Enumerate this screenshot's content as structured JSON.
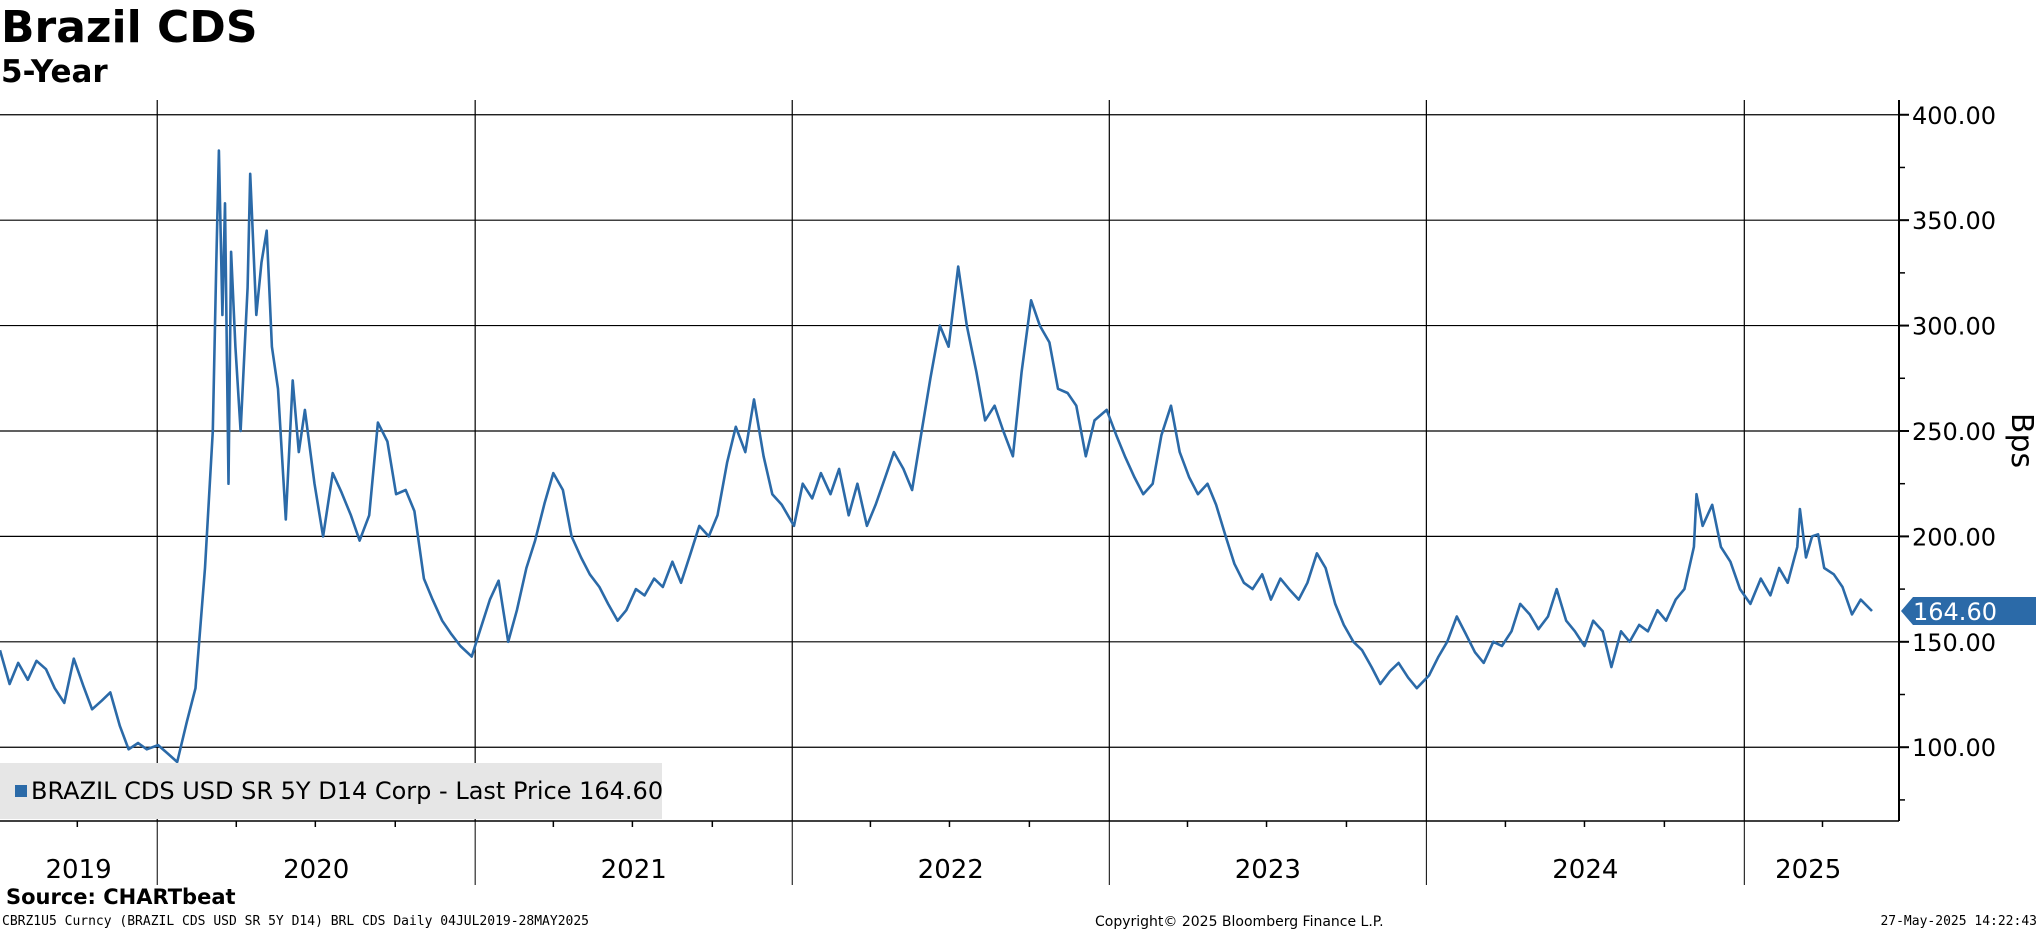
{
  "header": {
    "title": "Brazil CDS",
    "subtitle": "5-Year"
  },
  "footer": {
    "source": "Source: CHARTbeat",
    "ticker_line": "CBRZ1U5 Curncy (BRAZIL CDS USD SR 5Y D14) BRL CDS  Daily 04JUL2019-28MAY2025",
    "copyright": "Copyright© 2025 Bloomberg Finance L.P.",
    "timestamp": "27-May-2025 14:22:43"
  },
  "legend": {
    "label": "BRAZIL CDS USD SR 5Y D14 Corp - Last Price 164.60"
  },
  "colors": {
    "line": "#2b6aa8",
    "grid": "#000000",
    "last_price_tag": "#2b6aa8",
    "legend_background": "#e6e6e6"
  },
  "chart_data": {
    "type": "line",
    "title": "Brazil CDS",
    "subtitle": "5-Year",
    "ylabel": "Bps",
    "xlabel": "",
    "ylim": [
      65,
      407
    ],
    "xlim": [
      "2019-07-04",
      "2025-05-28"
    ],
    "y_ticks": [
      100,
      150,
      200,
      250,
      300,
      350,
      400
    ],
    "y_tick_labels": [
      "100.00",
      "150.00",
      "200.00",
      "250.00",
      "300.00",
      "350.00",
      "400.00"
    ],
    "x_year_labels": [
      "2019",
      "2020",
      "2021",
      "2022",
      "2023",
      "2024",
      "2025"
    ],
    "last_price": 164.6,
    "last_price_label": "164.60",
    "grid": true,
    "legend_position": "bottom-left",
    "series": [
      {
        "name": "BRAZIL CDS USD SR 5Y D14 Corp - Last Price",
        "points": [
          [
            "2019-07-04",
            146
          ],
          [
            "2019-07-15",
            130
          ],
          [
            "2019-07-25",
            140
          ],
          [
            "2019-08-05",
            132
          ],
          [
            "2019-08-15",
            141
          ],
          [
            "2019-08-26",
            137
          ],
          [
            "2019-09-05",
            128
          ],
          [
            "2019-09-16",
            121
          ],
          [
            "2019-09-27",
            142
          ],
          [
            "2019-10-08",
            129
          ],
          [
            "2019-10-18",
            118
          ],
          [
            "2019-10-29",
            122
          ],
          [
            "2019-11-08",
            126
          ],
          [
            "2019-11-19",
            110
          ],
          [
            "2019-11-29",
            99
          ],
          [
            "2019-12-10",
            102
          ],
          [
            "2019-12-20",
            99
          ],
          [
            "2020-01-02",
            101
          ],
          [
            "2020-01-13",
            97
          ],
          [
            "2020-01-24",
            93
          ],
          [
            "2020-02-04",
            112
          ],
          [
            "2020-02-14",
            128
          ],
          [
            "2020-02-25",
            185
          ],
          [
            "2020-03-05",
            250
          ],
          [
            "2020-03-09",
            330
          ],
          [
            "2020-03-12",
            383
          ],
          [
            "2020-03-16",
            305
          ],
          [
            "2020-03-19",
            358
          ],
          [
            "2020-03-23",
            225
          ],
          [
            "2020-03-26",
            335
          ],
          [
            "2020-03-31",
            290
          ],
          [
            "2020-04-06",
            250
          ],
          [
            "2020-04-14",
            318
          ],
          [
            "2020-04-17",
            372
          ],
          [
            "2020-04-24",
            305
          ],
          [
            "2020-04-30",
            330
          ],
          [
            "2020-05-06",
            345
          ],
          [
            "2020-05-12",
            290
          ],
          [
            "2020-05-19",
            270
          ],
          [
            "2020-05-28",
            208
          ],
          [
            "2020-06-05",
            274
          ],
          [
            "2020-06-12",
            240
          ],
          [
            "2020-06-19",
            260
          ],
          [
            "2020-06-30",
            225
          ],
          [
            "2020-07-10",
            200
          ],
          [
            "2020-07-21",
            230
          ],
          [
            "2020-07-31",
            221
          ],
          [
            "2020-08-11",
            210
          ],
          [
            "2020-08-21",
            198
          ],
          [
            "2020-09-01",
            210
          ],
          [
            "2020-09-11",
            254
          ],
          [
            "2020-09-22",
            245
          ],
          [
            "2020-10-02",
            220
          ],
          [
            "2020-10-13",
            222
          ],
          [
            "2020-10-23",
            212
          ],
          [
            "2020-11-03",
            180
          ],
          [
            "2020-11-13",
            170
          ],
          [
            "2020-11-24",
            160
          ],
          [
            "2020-12-04",
            154
          ],
          [
            "2020-12-15",
            148
          ],
          [
            "2020-12-28",
            143
          ],
          [
            "2021-01-07",
            156
          ],
          [
            "2021-01-18",
            170
          ],
          [
            "2021-01-28",
            179
          ],
          [
            "2021-02-08",
            150
          ],
          [
            "2021-02-18",
            165
          ],
          [
            "2021-03-01",
            185
          ],
          [
            "2021-03-11",
            198
          ],
          [
            "2021-03-22",
            216
          ],
          [
            "2021-04-01",
            230
          ],
          [
            "2021-04-12",
            222
          ],
          [
            "2021-04-22",
            200
          ],
          [
            "2021-05-03",
            190
          ],
          [
            "2021-05-13",
            182
          ],
          [
            "2021-05-24",
            176
          ],
          [
            "2021-06-03",
            168
          ],
          [
            "2021-06-14",
            160
          ],
          [
            "2021-06-24",
            165
          ],
          [
            "2021-07-05",
            175
          ],
          [
            "2021-07-15",
            172
          ],
          [
            "2021-07-26",
            180
          ],
          [
            "2021-08-05",
            176
          ],
          [
            "2021-08-16",
            188
          ],
          [
            "2021-08-26",
            178
          ],
          [
            "2021-09-06",
            192
          ],
          [
            "2021-09-16",
            205
          ],
          [
            "2021-09-27",
            200
          ],
          [
            "2021-10-07",
            210
          ],
          [
            "2021-10-18",
            235
          ],
          [
            "2021-10-28",
            252
          ],
          [
            "2021-11-08",
            240
          ],
          [
            "2021-11-18",
            265
          ],
          [
            "2021-11-29",
            238
          ],
          [
            "2021-12-09",
            220
          ],
          [
            "2021-12-20",
            215
          ],
          [
            "2022-01-03",
            205
          ],
          [
            "2022-01-13",
            225
          ],
          [
            "2022-01-24",
            218
          ],
          [
            "2022-02-03",
            230
          ],
          [
            "2022-02-14",
            220
          ],
          [
            "2022-02-24",
            232
          ],
          [
            "2022-03-07",
            210
          ],
          [
            "2022-03-17",
            225
          ],
          [
            "2022-03-28",
            205
          ],
          [
            "2022-04-07",
            215
          ],
          [
            "2022-04-18",
            228
          ],
          [
            "2022-04-28",
            240
          ],
          [
            "2022-05-09",
            232
          ],
          [
            "2022-05-19",
            222
          ],
          [
            "2022-05-30",
            250
          ],
          [
            "2022-06-09",
            275
          ],
          [
            "2022-06-20",
            300
          ],
          [
            "2022-06-30",
            290
          ],
          [
            "2022-07-11",
            328
          ],
          [
            "2022-07-21",
            300
          ],
          [
            "2022-08-01",
            278
          ],
          [
            "2022-08-11",
            255
          ],
          [
            "2022-08-22",
            262
          ],
          [
            "2022-09-01",
            250
          ],
          [
            "2022-09-12",
            238
          ],
          [
            "2022-09-22",
            278
          ],
          [
            "2022-10-03",
            312
          ],
          [
            "2022-10-13",
            300
          ],
          [
            "2022-10-24",
            292
          ],
          [
            "2022-11-03",
            270
          ],
          [
            "2022-11-14",
            268
          ],
          [
            "2022-11-24",
            262
          ],
          [
            "2022-12-05",
            238
          ],
          [
            "2022-12-15",
            255
          ],
          [
            "2022-12-29",
            260
          ],
          [
            "2023-01-09",
            248
          ],
          [
            "2023-01-19",
            238
          ],
          [
            "2023-01-30",
            228
          ],
          [
            "2023-02-09",
            220
          ],
          [
            "2023-02-20",
            225
          ],
          [
            "2023-03-02",
            248
          ],
          [
            "2023-03-13",
            262
          ],
          [
            "2023-03-23",
            240
          ],
          [
            "2023-04-03",
            228
          ],
          [
            "2023-04-13",
            220
          ],
          [
            "2023-04-24",
            225
          ],
          [
            "2023-05-04",
            215
          ],
          [
            "2023-05-15",
            200
          ],
          [
            "2023-05-25",
            187
          ],
          [
            "2023-06-05",
            178
          ],
          [
            "2023-06-15",
            175
          ],
          [
            "2023-06-26",
            182
          ],
          [
            "2023-07-06",
            170
          ],
          [
            "2023-07-17",
            180
          ],
          [
            "2023-07-27",
            175
          ],
          [
            "2023-08-07",
            170
          ],
          [
            "2023-08-17",
            178
          ],
          [
            "2023-08-28",
            192
          ],
          [
            "2023-09-07",
            185
          ],
          [
            "2023-09-18",
            168
          ],
          [
            "2023-09-28",
            158
          ],
          [
            "2023-10-09",
            150
          ],
          [
            "2023-10-19",
            146
          ],
          [
            "2023-10-30",
            138
          ],
          [
            "2023-11-09",
            130
          ],
          [
            "2023-11-20",
            136
          ],
          [
            "2023-11-30",
            140
          ],
          [
            "2023-12-11",
            133
          ],
          [
            "2023-12-21",
            128
          ],
          [
            "2024-01-04",
            134
          ],
          [
            "2024-01-15",
            143
          ],
          [
            "2024-01-25",
            150
          ],
          [
            "2024-02-05",
            162
          ],
          [
            "2024-02-15",
            154
          ],
          [
            "2024-02-26",
            145
          ],
          [
            "2024-03-07",
            140
          ],
          [
            "2024-03-18",
            150
          ],
          [
            "2024-03-28",
            148
          ],
          [
            "2024-04-08",
            155
          ],
          [
            "2024-04-18",
            168
          ],
          [
            "2024-04-29",
            163
          ],
          [
            "2024-05-09",
            156
          ],
          [
            "2024-05-20",
            162
          ],
          [
            "2024-05-30",
            175
          ],
          [
            "2024-06-10",
            160
          ],
          [
            "2024-06-20",
            155
          ],
          [
            "2024-07-01",
            148
          ],
          [
            "2024-07-11",
            160
          ],
          [
            "2024-07-22",
            155
          ],
          [
            "2024-08-01",
            138
          ],
          [
            "2024-08-12",
            155
          ],
          [
            "2024-08-22",
            150
          ],
          [
            "2024-09-02",
            158
          ],
          [
            "2024-09-12",
            155
          ],
          [
            "2024-09-23",
            165
          ],
          [
            "2024-10-03",
            160
          ],
          [
            "2024-10-14",
            170
          ],
          [
            "2024-10-24",
            175
          ],
          [
            "2024-11-04",
            195
          ],
          [
            "2024-11-07",
            220
          ],
          [
            "2024-11-14",
            205
          ],
          [
            "2024-11-25",
            215
          ],
          [
            "2024-12-05",
            195
          ],
          [
            "2024-12-16",
            188
          ],
          [
            "2024-12-27",
            175
          ],
          [
            "2025-01-08",
            168
          ],
          [
            "2025-01-20",
            180
          ],
          [
            "2025-01-31",
            172
          ],
          [
            "2025-02-10",
            185
          ],
          [
            "2025-02-20",
            178
          ],
          [
            "2025-03-03",
            195
          ],
          [
            "2025-03-06",
            213
          ],
          [
            "2025-03-13",
            190
          ],
          [
            "2025-03-20",
            200
          ],
          [
            "2025-03-27",
            201
          ],
          [
            "2025-04-03",
            185
          ],
          [
            "2025-04-14",
            182
          ],
          [
            "2025-04-24",
            176
          ],
          [
            "2025-05-05",
            163
          ],
          [
            "2025-05-15",
            170
          ],
          [
            "2025-05-28",
            164.6
          ]
        ]
      }
    ]
  }
}
